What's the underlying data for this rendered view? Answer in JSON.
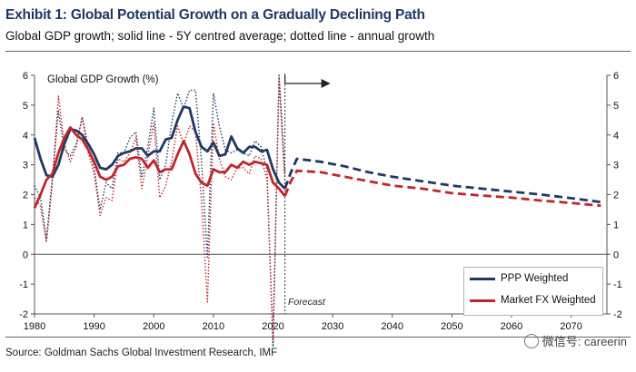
{
  "title": "Exhibit 1: Global Potential Growth on a Gradually Declining Path",
  "subtitle": "Global GDP growth; solid line - 5Y centred average; dotted line - annual growth",
  "source": "Source: Goldman Sachs Global Investment Research, IMF",
  "watermark": "微信号: careerin",
  "forecast_label": "Forecast",
  "colors": {
    "ppp": "#1f3864",
    "fx": "#c0262c",
    "axis": "#555555"
  },
  "legend": {
    "ppp": "PPP Weighted",
    "fx": "Market FX Weighted"
  },
  "chart_data": {
    "type": "line",
    "title": "Global Potential Growth on a Gradually Declining Path",
    "ylabel": "Global GDP Growth (%)",
    "xlim": [
      1980,
      2076
    ],
    "ylim": [
      -2,
      6
    ],
    "x_ticks": [
      1980,
      1990,
      2000,
      2010,
      2020,
      2030,
      2040,
      2050,
      2060,
      2070
    ],
    "y_ticks": [
      -2,
      -1,
      0,
      1,
      2,
      3,
      4,
      5,
      6
    ],
    "forecast_start": 2022,
    "series": [
      {
        "name": "PPP Weighted",
        "style": "solid",
        "points": [
          [
            1980,
            3.9
          ],
          [
            1981,
            3.2
          ],
          [
            1982,
            2.65
          ],
          [
            1983,
            2.6
          ],
          [
            1984,
            3.0
          ],
          [
            1985,
            3.7
          ],
          [
            1986,
            4.2
          ],
          [
            1987,
            4.15
          ],
          [
            1988,
            4.0
          ],
          [
            1989,
            3.7
          ],
          [
            1990,
            3.35
          ],
          [
            1991,
            2.9
          ],
          [
            1992,
            2.85
          ],
          [
            1993,
            3.0
          ],
          [
            1994,
            3.3
          ],
          [
            1995,
            3.4
          ],
          [
            1996,
            3.45
          ],
          [
            1997,
            3.55
          ],
          [
            1998,
            3.55
          ],
          [
            1999,
            3.3
          ],
          [
            2000,
            3.45
          ],
          [
            2001,
            3.45
          ],
          [
            2002,
            3.85
          ],
          [
            2003,
            3.9
          ],
          [
            2004,
            4.5
          ],
          [
            2005,
            4.95
          ],
          [
            2006,
            4.9
          ],
          [
            2007,
            4.1
          ],
          [
            2008,
            3.6
          ],
          [
            2009,
            3.45
          ],
          [
            2010,
            3.75
          ],
          [
            2011,
            3.3
          ],
          [
            2012,
            3.35
          ],
          [
            2013,
            3.95
          ],
          [
            2014,
            3.55
          ],
          [
            2015,
            3.4
          ],
          [
            2016,
            3.6
          ],
          [
            2017,
            3.6
          ],
          [
            2018,
            3.45
          ],
          [
            2019,
            3.5
          ],
          [
            2020,
            2.85
          ],
          [
            2021,
            2.4
          ],
          [
            2022,
            2.2
          ]
        ]
      },
      {
        "name": "PPP Weighted",
        "style": "dotted",
        "points": [
          [
            1980,
            2.3
          ],
          [
            1981,
            1.9
          ],
          [
            1982,
            0.5
          ],
          [
            1983,
            2.6
          ],
          [
            1984,
            4.8
          ],
          [
            1985,
            3.5
          ],
          [
            1986,
            3.3
          ],
          [
            1987,
            3.7
          ],
          [
            1988,
            4.6
          ],
          [
            1989,
            3.6
          ],
          [
            1990,
            2.9
          ],
          [
            1991,
            1.5
          ],
          [
            1992,
            2.4
          ],
          [
            1993,
            2.2
          ],
          [
            1994,
            3.4
          ],
          [
            1995,
            3.4
          ],
          [
            1996,
            3.9
          ],
          [
            1997,
            4.1
          ],
          [
            1998,
            2.6
          ],
          [
            1999,
            3.6
          ],
          [
            2000,
            4.9
          ],
          [
            2001,
            2.5
          ],
          [
            2002,
            3.0
          ],
          [
            2003,
            4.4
          ],
          [
            2004,
            5.4
          ],
          [
            2005,
            4.9
          ],
          [
            2006,
            5.5
          ],
          [
            2007,
            5.5
          ],
          [
            2008,
            3.1
          ],
          [
            2009,
            -0.1
          ],
          [
            2010,
            5.4
          ],
          [
            2011,
            4.3
          ],
          [
            2012,
            3.5
          ],
          [
            2013,
            3.4
          ],
          [
            2014,
            3.5
          ],
          [
            2015,
            3.4
          ],
          [
            2016,
            3.3
          ],
          [
            2017,
            3.8
          ],
          [
            2018,
            3.6
          ],
          [
            2019,
            2.8
          ],
          [
            2020,
            -3.1
          ],
          [
            2021,
            6.0
          ],
          [
            2022,
            2.7
          ]
        ]
      },
      {
        "name": "Market FX Weighted",
        "style": "solid",
        "points": [
          [
            1980,
            1.55
          ],
          [
            1981,
            2.0
          ],
          [
            1982,
            2.5
          ],
          [
            1983,
            2.7
          ],
          [
            1984,
            3.4
          ],
          [
            1985,
            3.9
          ],
          [
            1986,
            4.25
          ],
          [
            1987,
            4.0
          ],
          [
            1988,
            3.85
          ],
          [
            1989,
            3.5
          ],
          [
            1990,
            3.1
          ],
          [
            1991,
            2.6
          ],
          [
            1992,
            2.5
          ],
          [
            1993,
            2.6
          ],
          [
            1994,
            2.95
          ],
          [
            1995,
            3.0
          ],
          [
            1996,
            3.2
          ],
          [
            1997,
            3.25
          ],
          [
            1998,
            3.2
          ],
          [
            1999,
            2.9
          ],
          [
            2000,
            3.15
          ],
          [
            2001,
            2.75
          ],
          [
            2002,
            2.85
          ],
          [
            2003,
            2.85
          ],
          [
            2004,
            3.35
          ],
          [
            2005,
            3.8
          ],
          [
            2006,
            3.35
          ],
          [
            2007,
            2.7
          ],
          [
            2008,
            2.4
          ],
          [
            2009,
            2.3
          ],
          [
            2010,
            2.85
          ],
          [
            2011,
            2.75
          ],
          [
            2012,
            2.75
          ],
          [
            2013,
            3.0
          ],
          [
            2014,
            2.9
          ],
          [
            2015,
            3.1
          ],
          [
            2016,
            3.0
          ],
          [
            2017,
            3.1
          ],
          [
            2018,
            3.05
          ],
          [
            2019,
            3.0
          ],
          [
            2020,
            2.4
          ],
          [
            2021,
            2.2
          ],
          [
            2022,
            1.95
          ]
        ]
      },
      {
        "name": "Market FX Weighted",
        "style": "dotted",
        "points": [
          [
            1980,
            1.9
          ],
          [
            1981,
            1.6
          ],
          [
            1982,
            0.4
          ],
          [
            1983,
            2.4
          ],
          [
            1984,
            5.3
          ],
          [
            1985,
            3.7
          ],
          [
            1986,
            3.1
          ],
          [
            1987,
            3.6
          ],
          [
            1988,
            4.6
          ],
          [
            1989,
            3.4
          ],
          [
            1990,
            2.7
          ],
          [
            1991,
            1.3
          ],
          [
            1992,
            1.9
          ],
          [
            1993,
            1.8
          ],
          [
            1994,
            3.2
          ],
          [
            1995,
            3.1
          ],
          [
            1996,
            3.4
          ],
          [
            1997,
            3.9
          ],
          [
            1998,
            2.2
          ],
          [
            1999,
            3.3
          ],
          [
            2000,
            4.4
          ],
          [
            2001,
            1.9
          ],
          [
            2002,
            2.3
          ],
          [
            2003,
            3.1
          ],
          [
            2004,
            4.3
          ],
          [
            2005,
            3.7
          ],
          [
            2006,
            4.3
          ],
          [
            2007,
            4.1
          ],
          [
            2008,
            1.8
          ],
          [
            2009,
            -1.6
          ],
          [
            2010,
            4.4
          ],
          [
            2011,
            3.2
          ],
          [
            2012,
            2.6
          ],
          [
            2013,
            2.5
          ],
          [
            2014,
            2.9
          ],
          [
            2015,
            2.9
          ],
          [
            2016,
            2.7
          ],
          [
            2017,
            3.3
          ],
          [
            2018,
            3.2
          ],
          [
            2019,
            2.5
          ],
          [
            2020,
            -2.9
          ],
          [
            2021,
            5.9
          ],
          [
            2022,
            2.4
          ]
        ]
      },
      {
        "name": "PPP Weighted",
        "style": "dashed",
        "points": [
          [
            2022,
            2.2
          ],
          [
            2023,
            2.75
          ],
          [
            2024,
            3.2
          ],
          [
            2028,
            3.1
          ],
          [
            2032,
            2.95
          ],
          [
            2036,
            2.75
          ],
          [
            2040,
            2.6
          ],
          [
            2045,
            2.45
          ],
          [
            2050,
            2.3
          ],
          [
            2055,
            2.2
          ],
          [
            2060,
            2.1
          ],
          [
            2065,
            2.0
          ],
          [
            2070,
            1.88
          ],
          [
            2075,
            1.75
          ]
        ]
      },
      {
        "name": "Market FX Weighted",
        "style": "dashed",
        "points": [
          [
            2022,
            1.95
          ],
          [
            2023,
            2.45
          ],
          [
            2024,
            2.8
          ],
          [
            2028,
            2.75
          ],
          [
            2032,
            2.6
          ],
          [
            2036,
            2.45
          ],
          [
            2040,
            2.3
          ],
          [
            2045,
            2.2
          ],
          [
            2050,
            2.05
          ],
          [
            2055,
            1.97
          ],
          [
            2060,
            1.9
          ],
          [
            2065,
            1.8
          ],
          [
            2070,
            1.72
          ],
          [
            2075,
            1.63
          ]
        ]
      }
    ]
  }
}
